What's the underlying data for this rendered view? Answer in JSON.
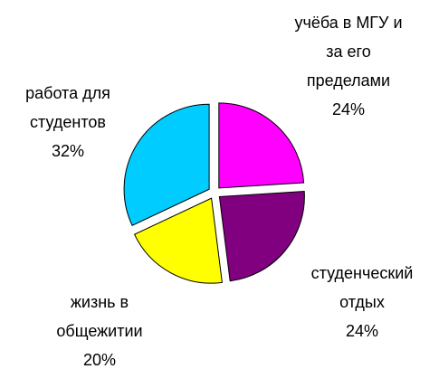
{
  "chart_data": {
    "type": "pie",
    "categories": [
      "учёба в МГУ и за его пределами",
      "студенческий отдых",
      "жизнь в общежитии",
      "работа для студентов"
    ],
    "values": [
      24,
      24,
      20,
      32
    ],
    "value_labels": [
      "24%",
      "24%",
      "20%",
      "32%"
    ],
    "colors": [
      "#ff00ff",
      "#800080",
      "#ffff00",
      "#00ccff"
    ]
  }
}
